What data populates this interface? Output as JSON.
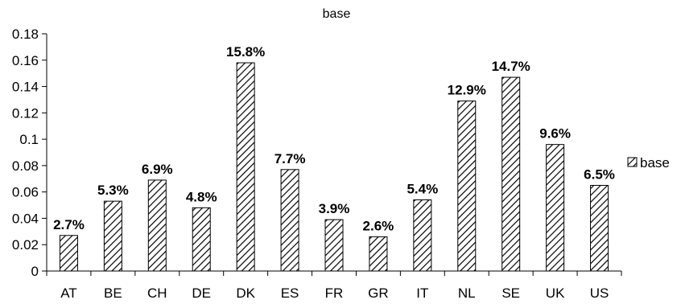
{
  "chart_data": {
    "type": "bar",
    "title": "base",
    "xlabel": "",
    "ylabel": "",
    "categories": [
      "AT",
      "BE",
      "CH",
      "DE",
      "DK",
      "ES",
      "FR",
      "GR",
      "IT",
      "NL",
      "SE",
      "UK",
      "US"
    ],
    "series": [
      {
        "name": "base",
        "values": [
          0.027,
          0.053,
          0.069,
          0.048,
          0.158,
          0.077,
          0.039,
          0.026,
          0.054,
          0.129,
          0.147,
          0.096,
          0.065
        ],
        "data_labels": [
          "2.7%",
          "5.3%",
          "6.9%",
          "4.8%",
          "15.8%",
          "7.7%",
          "3.9%",
          "2.6%",
          "5.4%",
          "12.9%",
          "14.7%",
          "9.6%",
          "6.5%"
        ]
      }
    ],
    "ylim": [
      0,
      0.18
    ],
    "yticks": [
      "0",
      "0.02",
      "0.04",
      "0.06",
      "0.08",
      "0.1",
      "0.12",
      "0.14",
      "0.16",
      "0.18"
    ],
    "grid": false,
    "legend": "right",
    "colors": {
      "bar_fill": "#ffffff",
      "hatch": "#000000",
      "axis": "#000000"
    }
  }
}
